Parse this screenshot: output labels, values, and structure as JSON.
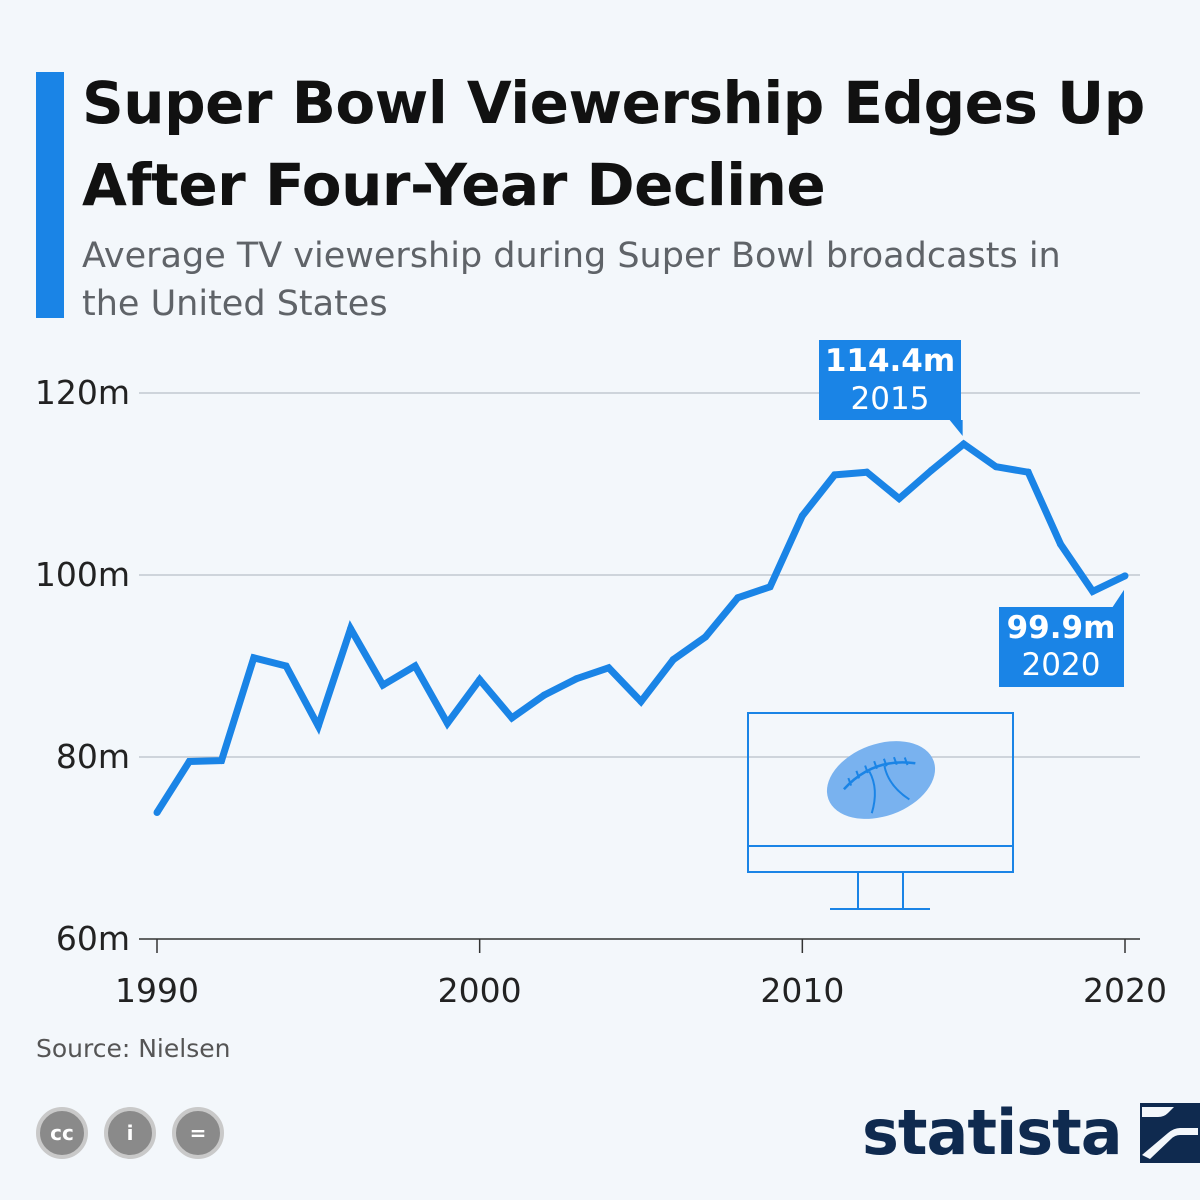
{
  "header": {
    "title": "Super Bowl Viewership Edges Up After Four-Year Decline",
    "subtitle": "Average TV viewership during Super Bowl broadcasts in the United States"
  },
  "chart_data": {
    "type": "line",
    "title": "Super Bowl Viewership Edges Up After Four-Year Decline",
    "subtitle": "Average TV viewership during Super Bowl broadcasts in the United States",
    "xlabel": "",
    "ylabel": "",
    "x": [
      1990,
      1991,
      1992,
      1993,
      1994,
      1995,
      1996,
      1997,
      1998,
      1999,
      2000,
      2001,
      2002,
      2003,
      2004,
      2005,
      2006,
      2007,
      2008,
      2009,
      2010,
      2011,
      2012,
      2013,
      2014,
      2015,
      2016,
      2017,
      2018,
      2019,
      2020
    ],
    "series": [
      {
        "name": "",
        "color": "#1a84e6",
        "values": [
          73.9,
          79.5,
          79.6,
          90.9,
          90.0,
          83.4,
          94.1,
          87.9,
          90.0,
          83.7,
          88.5,
          84.3,
          86.8,
          88.6,
          89.8,
          86.1,
          90.7,
          93.2,
          97.5,
          98.7,
          106.5,
          111.0,
          111.3,
          108.4,
          111.5,
          114.4,
          111.9,
          111.3,
          103.4,
          98.2,
          99.9
        ]
      }
    ],
    "xticks": [
      "1990",
      "2000",
      "2010",
      "2020"
    ],
    "yticks": [
      "120m",
      "100m",
      "80m",
      "60m"
    ],
    "ylim": [
      60,
      120
    ],
    "xlim": [
      1990,
      2020
    ],
    "grid": true,
    "annotations": [
      {
        "value_label": "114.4m",
        "year_label": "2015",
        "x": 2015,
        "y": 114.4
      },
      {
        "value_label": "99.9m",
        "year_label": "2020",
        "x": 2020,
        "y": 99.9
      }
    ]
  },
  "footer": {
    "source": "Source: Nielsen",
    "license_icons": [
      "creative-commons-icon",
      "attribution-icon",
      "no-derivatives-icon"
    ],
    "license_labels": [
      "cc",
      "i",
      "="
    ],
    "brand": "statista",
    "brand_color": "#0f2a4f"
  },
  "colors": {
    "accent": "#1a84e6",
    "background": "#f3f7fb"
  }
}
